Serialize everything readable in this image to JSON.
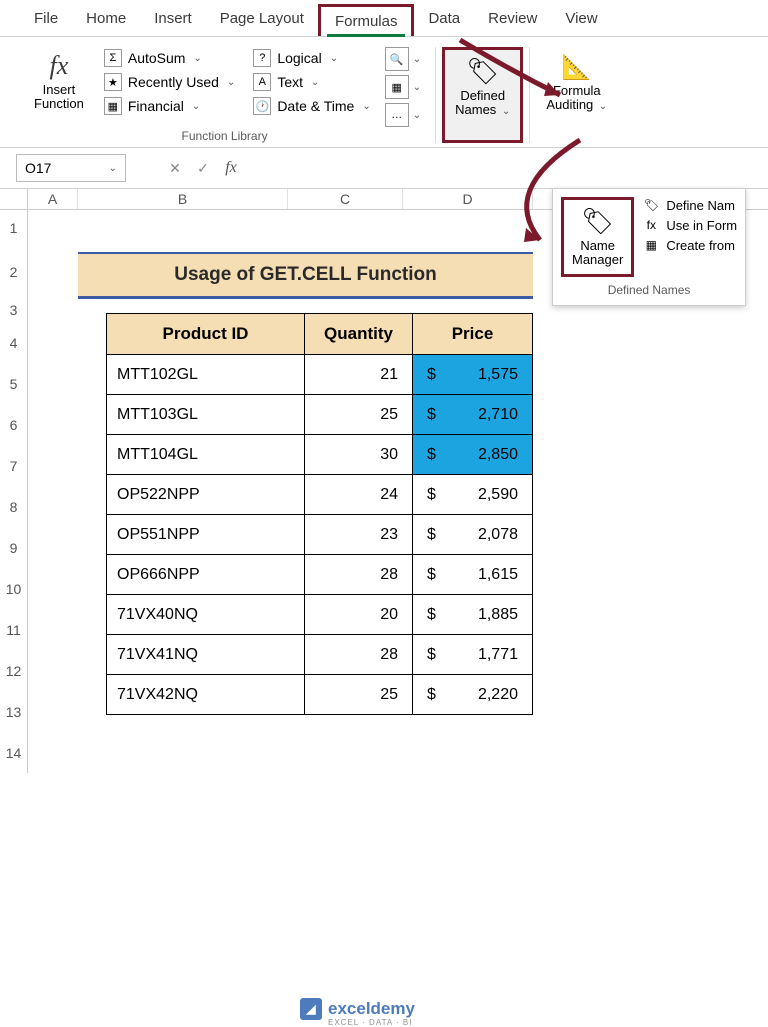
{
  "menu": {
    "items": [
      "File",
      "Home",
      "Insert",
      "Page Layout",
      "Formulas",
      "Data",
      "Review",
      "View"
    ],
    "active_index": 4
  },
  "ribbon": {
    "insert_function": {
      "icon": "fx",
      "label": "Insert\nFunction"
    },
    "fn_buttons_col1": [
      {
        "icon": "Σ",
        "label": "AutoSum"
      },
      {
        "icon": "★",
        "label": "Recently Used"
      },
      {
        "icon": "▦",
        "label": "Financial"
      }
    ],
    "fn_buttons_col2": [
      {
        "icon": "?",
        "label": "Logical"
      },
      {
        "icon": "A",
        "label": "Text"
      },
      {
        "icon": "🕐",
        "label": "Date & Time"
      }
    ],
    "mini_buttons": [
      "🔍",
      "▦",
      "…"
    ],
    "defined_names": {
      "label": "Defined\nNames"
    },
    "formula_auditing": {
      "label": "Formula\nAuditing"
    },
    "group_label": "Function Library"
  },
  "name_box": {
    "value": "O17"
  },
  "dropdown": {
    "name_manager": {
      "label": "Name\nManager"
    },
    "items": [
      {
        "icon": "🏷",
        "label": "Define Nam"
      },
      {
        "icon": "fx",
        "label": "Use in Form"
      },
      {
        "icon": "▦",
        "label": "Create from"
      }
    ],
    "panel_label": "Defined Names"
  },
  "sheet": {
    "columns": [
      "A",
      "B",
      "C",
      "D"
    ],
    "row_numbers": [
      1,
      2,
      3,
      4,
      5,
      6,
      7,
      8,
      9,
      10,
      11,
      12,
      13,
      14
    ],
    "title": "Usage of GET.CELL Function"
  },
  "table": {
    "headers": [
      "Product ID",
      "Quantity",
      "Price"
    ],
    "rows": [
      {
        "pid": "MTT102GL",
        "qty": 21,
        "price": "1,575",
        "highlighted": true
      },
      {
        "pid": "MTT103GL",
        "qty": 25,
        "price": "2,710",
        "highlighted": true
      },
      {
        "pid": "MTT104GL",
        "qty": 30,
        "price": "2,850",
        "highlighted": true
      },
      {
        "pid": "OP522NPP",
        "qty": 24,
        "price": "2,590",
        "highlighted": false
      },
      {
        "pid": "OP551NPP",
        "qty": 23,
        "price": "2,078",
        "highlighted": false
      },
      {
        "pid": "OP666NPP",
        "qty": 28,
        "price": "1,615",
        "highlighted": false
      },
      {
        "pid": "71VX40NQ",
        "qty": 20,
        "price": "1,885",
        "highlighted": false
      },
      {
        "pid": "71VX41NQ",
        "qty": 28,
        "price": "1,771",
        "highlighted": false
      },
      {
        "pid": "71VX42NQ",
        "qty": 25,
        "price": "2,220",
        "highlighted": false
      }
    ],
    "currency": "$"
  },
  "watermark": {
    "text": "exceldemy",
    "sub": "EXCEL · DATA · BI"
  },
  "colors": {
    "highlight_border": "#7a1a2b",
    "banner_bg": "#f5deb3",
    "banner_border": "#3b5ba5",
    "cell_highlight": "#1ca4e0"
  }
}
